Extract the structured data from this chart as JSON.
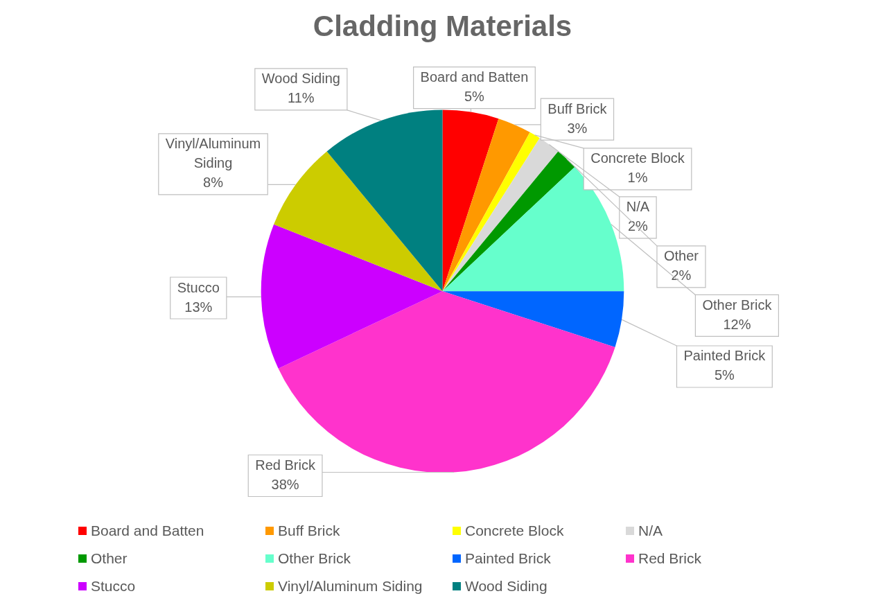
{
  "chart_data": {
    "type": "pie",
    "title": "Cladding Materials",
    "categories": [
      "Board and Batten",
      "Buff Brick",
      "Concrete Block",
      "N/A",
      "Other",
      "Other Brick",
      "Painted Brick",
      "Red Brick",
      "Stucco",
      "Vinyl/Aluminum Siding",
      "Wood Siding"
    ],
    "values": [
      5,
      3,
      1,
      2,
      2,
      12,
      5,
      38,
      13,
      8,
      11
    ],
    "value_labels": [
      "5%",
      "3%",
      "1%",
      "2%",
      "2%",
      "12%",
      "5%",
      "38%",
      "13%",
      "8%",
      "11%"
    ],
    "colors": [
      "#ff0000",
      "#ff9900",
      "#ffff00",
      "#d9d9d9",
      "#009900",
      "#66ffcc",
      "#0066ff",
      "#ff33cc",
      "#cc00ff",
      "#cccc00",
      "#008080"
    ],
    "legend": "bottom"
  }
}
